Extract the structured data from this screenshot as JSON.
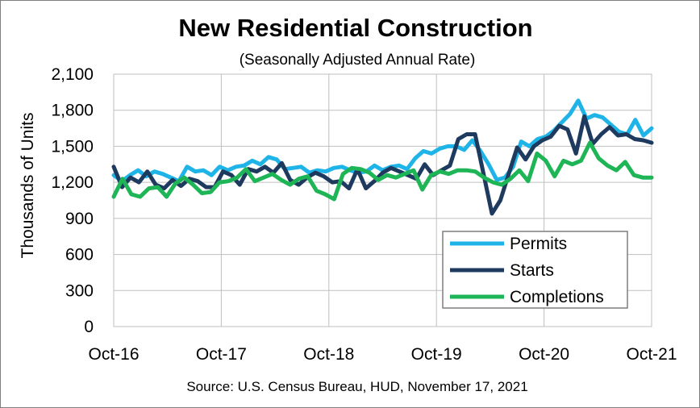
{
  "chart_data": {
    "type": "line",
    "title": "New Residential Construction",
    "subtitle": "(Seasonally Adjusted Annual Rate)",
    "ylabel": "Thousands of Units",
    "xlabel": "",
    "source": "Source:  U.S. Census Bureau, HUD, November 17, 2021",
    "ylim": [
      0,
      2100
    ],
    "yticks": [
      0,
      300,
      600,
      900,
      1200,
      1500,
      1800,
      2100
    ],
    "ytick_labels": [
      "0",
      "300",
      "600",
      "900",
      "1,200",
      "1,500",
      "1,800",
      "2,100"
    ],
    "x_start": "Oct-16",
    "x_end": "Oct-21",
    "xtick_labels": [
      "Oct-16",
      "Oct-17",
      "Oct-18",
      "Oct-19",
      "Oct-20",
      "Oct-21"
    ],
    "grid": true,
    "legend_position": "bottom-right",
    "series": [
      {
        "name": "Permits",
        "color": "#1fb4e8",
        "values": [
          1260,
          1210,
          1260,
          1300,
          1250,
          1290,
          1270,
          1240,
          1210,
          1330,
          1290,
          1300,
          1260,
          1330,
          1300,
          1330,
          1340,
          1380,
          1350,
          1410,
          1390,
          1310,
          1320,
          1330,
          1280,
          1300,
          1290,
          1320,
          1330,
          1300,
          1280,
          1290,
          1340,
          1300,
          1330,
          1340,
          1310,
          1400,
          1460,
          1440,
          1480,
          1500,
          1500,
          1470,
          1550,
          1460,
          1350,
          1220,
          1240,
          1330,
          1540,
          1500,
          1560,
          1580,
          1630,
          1700,
          1770,
          1880,
          1730,
          1760,
          1740,
          1680,
          1620,
          1600,
          1720,
          1590,
          1650
        ]
      },
      {
        "name": "Starts",
        "color": "#1f3a5f",
        "values": [
          1330,
          1160,
          1240,
          1200,
          1290,
          1180,
          1150,
          1220,
          1170,
          1230,
          1210,
          1160,
          1160,
          1290,
          1260,
          1180,
          1310,
          1290,
          1330,
          1280,
          1360,
          1220,
          1180,
          1240,
          1280,
          1250,
          1200,
          1210,
          1150,
          1310,
          1150,
          1210,
          1280,
          1320,
          1290,
          1260,
          1230,
          1350,
          1260,
          1300,
          1340,
          1560,
          1600,
          1600,
          1270,
          940,
          1050,
          1270,
          1490,
          1390,
          1500,
          1550,
          1580,
          1670,
          1640,
          1440,
          1750,
          1520,
          1600,
          1660,
          1590,
          1600,
          1560,
          1550,
          1530
        ]
      },
      {
        "name": "Completions",
        "color": "#1db556",
        "values": [
          1080,
          1230,
          1100,
          1080,
          1150,
          1160,
          1080,
          1190,
          1240,
          1180,
          1110,
          1120,
          1200,
          1210,
          1240,
          1310,
          1210,
          1240,
          1270,
          1220,
          1180,
          1230,
          1250,
          1130,
          1100,
          1060,
          1270,
          1320,
          1310,
          1280,
          1220,
          1260,
          1240,
          1270,
          1300,
          1140,
          1260,
          1290,
          1270,
          1300,
          1300,
          1290,
          1240,
          1200,
          1180,
          1230,
          1300,
          1210,
          1440,
          1380,
          1250,
          1380,
          1350,
          1380,
          1530,
          1400,
          1340,
          1300,
          1370,
          1260,
          1240,
          1240
        ]
      }
    ]
  }
}
